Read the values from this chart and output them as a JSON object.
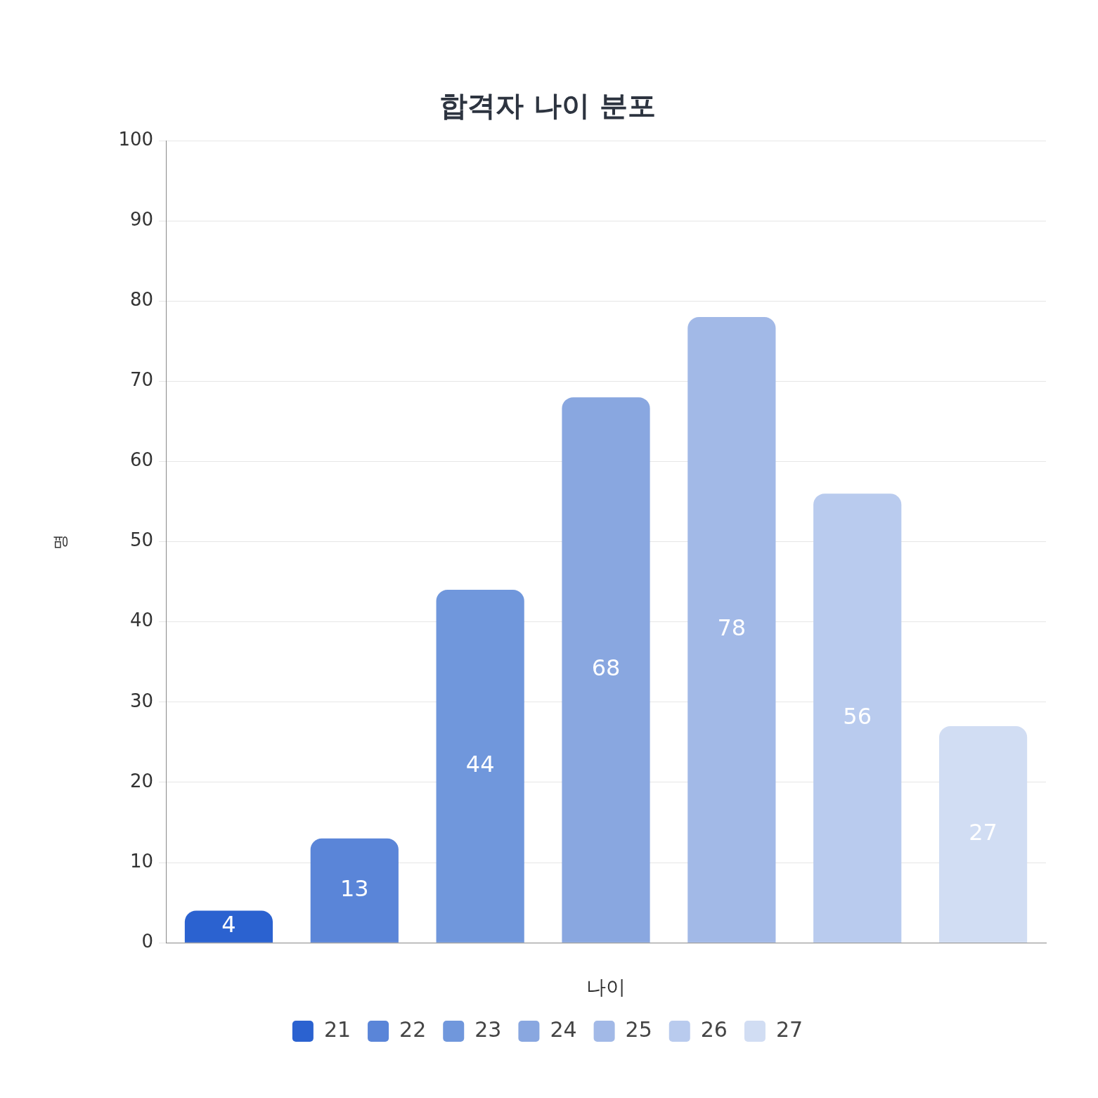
{
  "chart_data": {
    "type": "bar",
    "title": "합격자 나이 분포",
    "xlabel": "나이",
    "ylabel": "명",
    "categories": [
      null
    ],
    "series": [
      {
        "name": "21",
        "color": "#2b62d0",
        "values": [
          4
        ]
      },
      {
        "name": "22",
        "color": "#5a85d8",
        "values": [
          13
        ]
      },
      {
        "name": "23",
        "color": "#7097dc",
        "values": [
          44
        ]
      },
      {
        "name": "24",
        "color": "#89a7e0",
        "values": [
          68
        ]
      },
      {
        "name": "25",
        "color": "#a2b9e7",
        "values": [
          78
        ]
      },
      {
        "name": "26",
        "color": "#b9cbee",
        "values": [
          56
        ]
      },
      {
        "name": "27",
        "color": "#d1ddf3",
        "values": [
          27
        ]
      }
    ],
    "ylim": [
      0,
      100
    ],
    "yticks": [
      0,
      10,
      20,
      30,
      40,
      50,
      60,
      70,
      80,
      90,
      100
    ],
    "grid": "y",
    "legend": "bottom",
    "data_labels": true
  }
}
